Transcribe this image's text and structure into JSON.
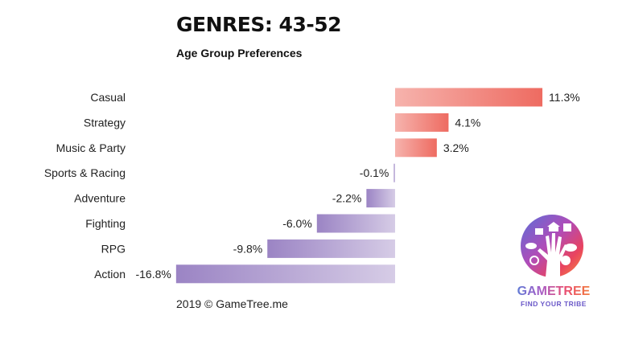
{
  "chart_data": {
    "type": "bar",
    "orientation": "horizontal",
    "title": "GENRES: 43-52",
    "subtitle": "Age Group Preferences",
    "categories": [
      "Casual",
      "Strategy",
      "Music & Party",
      "Sports & Racing",
      "Adventure",
      "Fighting",
      "RPG",
      "Action"
    ],
    "values": [
      11.3,
      4.1,
      3.2,
      -0.1,
      -2.2,
      -6.0,
      -9.8,
      -16.8
    ],
    "labels": [
      "11.3%",
      "4.1%",
      "3.2%",
      "-0.1%",
      "-2.2%",
      "-6.0%",
      "-9.8%",
      "-16.8%"
    ],
    "unit": "%",
    "xlim": [
      -16.8,
      11.3
    ],
    "grid": false,
    "colors": {
      "positive_from": "#f6b3ad",
      "positive_to": "#ee6b61",
      "negative_from": "#9b84c4",
      "negative_to": "#d6cce6"
    }
  },
  "footer": "2019 © GameTree.me",
  "logo": {
    "name": "GAMETREE",
    "tagline": "FIND YOUR TRIBE"
  }
}
